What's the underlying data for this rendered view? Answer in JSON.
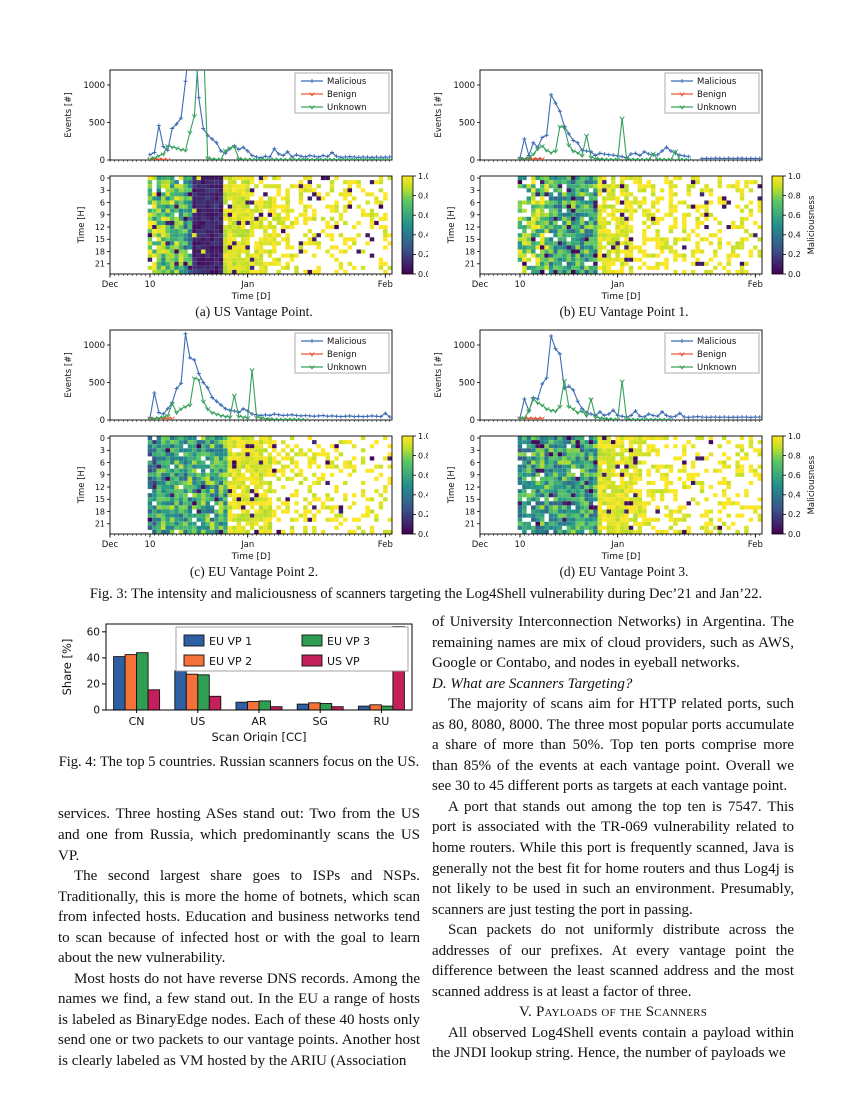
{
  "fig3": {
    "caption": "Fig. 3: The intensity and maliciousness of scanners targeting the Log4Shell vulnerability during Dec’21 and Jan’22.",
    "line_ylabel": "Events [#]",
    "line_yticks": [
      0,
      500,
      1000
    ],
    "line_ylim": [
      0,
      1200
    ],
    "heat_ylabel": "Time [H]",
    "heat_yticks": [
      0,
      3,
      6,
      9,
      12,
      15,
      18,
      21
    ],
    "xlabel": "Time [D]",
    "xlim": [
      0,
      63.5
    ],
    "xticks": [
      {
        "day": 0,
        "label": "Dec"
      },
      {
        "day": 9,
        "label": "10"
      },
      {
        "day": 31,
        "label": "Jan"
      },
      {
        "day": 62,
        "label": "Feb"
      }
    ],
    "legend": [
      {
        "name": "Malicious",
        "color": "#3c6cb4",
        "marker": "plus"
      },
      {
        "name": "Benign",
        "color": "#ea5739",
        "marker": "tri"
      },
      {
        "name": "Unknown",
        "color": "#37a05b",
        "marker": "tri"
      }
    ],
    "colorbar": {
      "label": "Maliciousness",
      "ticks": [
        1.0,
        0.8,
        0.6,
        0.4,
        0.2,
        0.0
      ]
    },
    "subplots": [
      {
        "caption": "(a) US Vantage Point.",
        "seed": 7,
        "start_day": 9,
        "malicious": [
          70,
          100,
          460,
          180,
          130,
          420,
          480,
          560,
          1050,
          1600,
          1800,
          830,
          420,
          330,
          280,
          230,
          120,
          90,
          150,
          190,
          140,
          170,
          120,
          60,
          40,
          30,
          50,
          40,
          150,
          80,
          60,
          110,
          40,
          70,
          50,
          40,
          60,
          50,
          40,
          60,
          45,
          100,
          50,
          35,
          40,
          45,
          40,
          35,
          40,
          38,
          35,
          40,
          36,
          38,
          40
        ],
        "benign": [
          12,
          10,
          12,
          10,
          8
        ],
        "unknown": [
          20,
          30,
          60,
          80,
          190,
          175,
          160,
          140,
          130,
          370,
          590,
          1500,
          1600,
          30,
          15,
          10,
          8,
          130,
          160,
          180,
          20,
          10,
          8,
          6,
          5,
          8,
          6,
          5,
          10,
          8,
          6,
          5,
          8,
          6,
          10,
          8,
          5,
          6,
          8,
          5,
          6,
          8,
          5,
          6,
          5,
          8,
          6,
          5,
          6,
          5,
          8,
          6,
          5,
          6,
          5
        ],
        "heat_segments": [
          [
            9,
            10,
            0.8,
            0.8
          ],
          [
            11,
            16,
            0.96,
            0.72
          ],
          [
            17,
            18,
            0.96,
            0.55
          ],
          [
            19,
            25,
            1.0,
            0.06
          ],
          [
            26,
            31,
            0.92,
            0.93
          ],
          [
            32,
            40,
            0.6,
            0.96
          ],
          [
            41,
            63,
            0.35,
            0.97
          ]
        ]
      },
      {
        "caption": "(b) EU Vantage Point 1.",
        "seed": 13,
        "start_day": 9,
        "malicious": [
          30,
          280,
          60,
          230,
          170,
          300,
          330,
          870,
          760,
          650,
          450,
          350,
          260,
          230,
          130,
          120,
          110,
          60,
          90,
          80,
          70,
          65,
          55,
          45,
          30,
          80,
          90,
          60,
          110,
          80,
          65,
          70,
          120,
          170,
          120,
          90,
          65,
          55,
          45,
          null,
          null,
          20,
          22,
          20,
          24,
          22,
          20,
          24,
          20,
          22,
          24,
          20,
          22,
          20,
          22
        ],
        "benign": [
          20,
          18,
          20,
          17,
          19,
          20
        ],
        "unknown": [
          15,
          20,
          30,
          80,
          150,
          190,
          130,
          100,
          120,
          450,
          430,
          200,
          120,
          100,
          60,
          330,
          40,
          20,
          15,
          10,
          8,
          6,
          10,
          560,
          15,
          10,
          8,
          6,
          5,
          8,
          90,
          10,
          8,
          6,
          5,
          120,
          8,
          6,
          5
        ],
        "heat_segments": [
          [
            9,
            11,
            0.65,
            0.75
          ],
          [
            12,
            15,
            0.9,
            0.8
          ],
          [
            16,
            26,
            0.95,
            0.6
          ],
          [
            27,
            34,
            0.75,
            0.95
          ],
          [
            35,
            44,
            0.45,
            0.97
          ],
          [
            45,
            63,
            0.3,
            0.97
          ]
        ]
      },
      {
        "caption": "(c) EU Vantage Point 2.",
        "seed": 21,
        "start_day": 9,
        "malicious": [
          30,
          360,
          100,
          80,
          150,
          230,
          420,
          490,
          1150,
          830,
          800,
          620,
          500,
          430,
          300,
          250,
          200,
          150,
          130,
          120,
          100,
          150,
          120,
          80,
          70,
          60,
          70,
          60,
          80,
          70,
          60,
          65,
          70,
          60,
          55,
          60,
          55,
          50,
          55,
          60,
          50,
          55,
          50,
          45,
          50,
          55,
          45,
          50,
          45,
          50,
          55,
          50,
          45,
          90,
          40
        ],
        "benign": [
          25,
          22,
          25,
          20,
          22,
          25
        ],
        "unknown": [
          15,
          20,
          30,
          40,
          60,
          220,
          100,
          150,
          180,
          200,
          560,
          540,
          250,
          150,
          100,
          80,
          60,
          50,
          40,
          330,
          50,
          40,
          30,
          670,
          40,
          30,
          20,
          15,
          10,
          8,
          6,
          8,
          10,
          8,
          6,
          5
        ],
        "heat_segments": [
          [
            9,
            10,
            0.9,
            0.45
          ],
          [
            11,
            26,
            0.96,
            0.62
          ],
          [
            27,
            36,
            0.85,
            0.94
          ],
          [
            37,
            46,
            0.4,
            0.97
          ],
          [
            47,
            63,
            0.3,
            0.97
          ]
        ]
      },
      {
        "caption": "(d) EU Vantage Point 3.",
        "seed": 29,
        "start_day": 9,
        "malicious": [
          30,
          280,
          120,
          300,
          280,
          480,
          560,
          1120,
          950,
          880,
          420,
          450,
          400,
          250,
          150,
          100,
          80,
          60,
          110,
          60,
          80,
          130,
          60,
          50,
          40,
          60,
          120,
          50,
          40,
          80,
          60,
          50,
          110,
          60,
          40,
          50,
          90,
          40,
          35,
          40,
          45,
          40,
          35,
          38,
          40,
          36,
          40,
          35,
          38,
          36,
          40,
          38,
          35,
          40,
          38
        ],
        "benign": [
          25,
          20,
          25,
          22,
          20,
          25
        ],
        "unknown": [
          20,
          30,
          120,
          280,
          230,
          200,
          150,
          130,
          120,
          180,
          530,
          180,
          150,
          100,
          120,
          60,
          280,
          40,
          30,
          20,
          15,
          10,
          8,
          520,
          15,
          10,
          8,
          6,
          5,
          8,
          6,
          5,
          8,
          6,
          5
        ],
        "heat_segments": [
          [
            9,
            11,
            0.85,
            0.55
          ],
          [
            12,
            26,
            0.96,
            0.58
          ],
          [
            27,
            36,
            0.85,
            0.94
          ],
          [
            37,
            46,
            0.4,
            0.97
          ],
          [
            47,
            63,
            0.3,
            0.97
          ]
        ]
      }
    ]
  },
  "chart_data": {
    "type": "bar",
    "title": "",
    "categories": [
      "CN",
      "US",
      "AR",
      "SG",
      "RU"
    ],
    "series": [
      {
        "name": "EU VP 1",
        "color": "#2e5fa3",
        "values": [
          41,
          30,
          6,
          4.5,
          3
        ]
      },
      {
        "name": "EU VP 2",
        "color": "#f4713a",
        "values": [
          42.5,
          27.5,
          6.5,
          5.5,
          4
        ]
      },
      {
        "name": "EU VP 3",
        "color": "#2f9e53",
        "values": [
          44,
          27,
          7,
          5,
          3
        ]
      },
      {
        "name": "US VP",
        "color": "#c21f5b",
        "values": [
          15.5,
          10.5,
          2.5,
          2.5,
          64
        ]
      }
    ],
    "xlabel": "Scan Origin [CC]",
    "ylabel": "Share [%]",
    "yticks": [
      0,
      20,
      40,
      60
    ],
    "ylim": [
      0,
      66
    ],
    "legend_position": "upper center",
    "grid": false
  },
  "fig4_caption": "Fig. 4: The top 5 countries. Russian scanners focus on the US.",
  "left_column": {
    "p1": "services. Three hosting ASes stand out: Two from the US and one from Russia, which predominantly scans the US VP.",
    "p2": "The second largest share goes to ISPs and NSPs. Traditionally, this is more the home of botnets, which scan from infected hosts. Education and business networks tend to scan because of infected host or with the goal to learn about the new vulnerability.",
    "p3": "Most hosts do not have reverse DNS records. Among the names we find, a few stand out. In the EU a range of hosts is labeled as BinaryEdge nodes. Each of these 40 hosts only send one or two packets to our vantage points. Another host is clearly labeled as VM hosted by the ARIU (Association"
  },
  "right_column": {
    "p1": "of University Interconnection Networks) in Argentina. The remaining names are mix of cloud providers, such as AWS, Google or Contabo, and nodes in eyeball networks.",
    "heading_d": "D. What are Scanners Targeting?",
    "p2": "The majority of scans aim for HTTP related ports, such as 80, 8080, 8000. The three most popular ports accumulate a share of more than 50%. Top ten ports comprise more than 85% of the events at each vantage point. Overall we see 30 to 45 different ports as targets at each vantage point.",
    "p3": "A port that stands out among the top ten is 7547. This port is associated with the TR-069 vulnerability related to home routers. While this port is frequently scanned, Java is generally not the best fit for home routers and thus Log4j is not likely to be used in such an environment. Presumably, scanners are just testing the port in passing.",
    "p4": "Scan packets do not uniformly distribute across the addresses of our prefixes. At every vantage point the difference between the least scanned address and the most scanned address is at least a factor of three.",
    "heading_v": "V. Payloads of the Scanners",
    "p5": "All observed Log4Shell events contain a payload within the JNDI lookup string. Hence, the number of payloads we"
  }
}
